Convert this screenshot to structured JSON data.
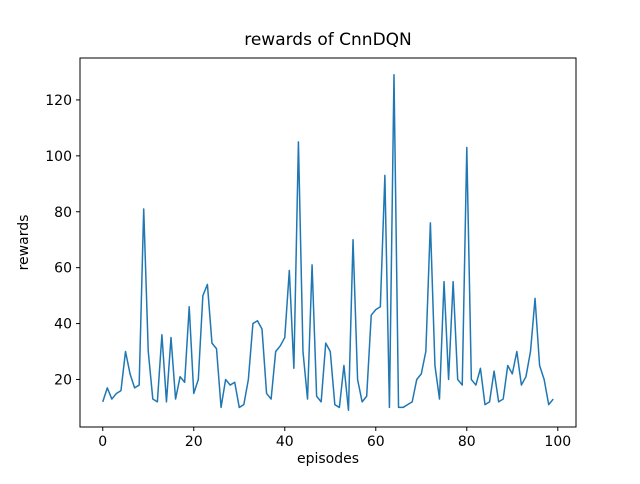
{
  "chart_data": {
    "type": "line",
    "title": "rewards of CnnDQN",
    "xlabel": "episodes",
    "ylabel": "rewards",
    "line_color": "#1f77b4",
    "legend": "none",
    "grid": false,
    "xlim": [
      -5,
      104
    ],
    "ylim": [
      3,
      135
    ],
    "xticks": [
      0,
      20,
      40,
      60,
      80,
      100
    ],
    "yticks": [
      20,
      40,
      60,
      80,
      100,
      120
    ],
    "x_start": 0,
    "x_step": 1,
    "values": [
      12,
      17,
      13,
      15,
      16,
      30,
      22,
      17,
      18,
      81,
      30,
      13,
      12,
      36,
      12,
      35,
      13,
      21,
      19,
      46,
      15,
      20,
      50,
      54,
      33,
      31,
      10,
      20,
      18,
      19,
      10,
      11,
      20,
      40,
      41,
      38,
      15,
      13,
      30,
      32,
      35,
      59,
      24,
      105,
      30,
      13,
      61,
      14,
      12,
      33,
      30,
      11,
      10,
      25,
      9,
      70,
      20,
      12,
      14,
      43,
      45,
      46,
      93,
      10,
      129,
      10,
      10,
      11,
      12,
      20,
      22,
      30,
      76,
      25,
      13,
      55,
      20,
      55,
      20,
      18,
      103,
      20,
      18,
      24,
      11,
      12,
      23,
      12,
      13,
      25,
      22,
      30,
      18,
      21,
      30,
      49,
      25,
      20,
      11,
      13
    ]
  }
}
